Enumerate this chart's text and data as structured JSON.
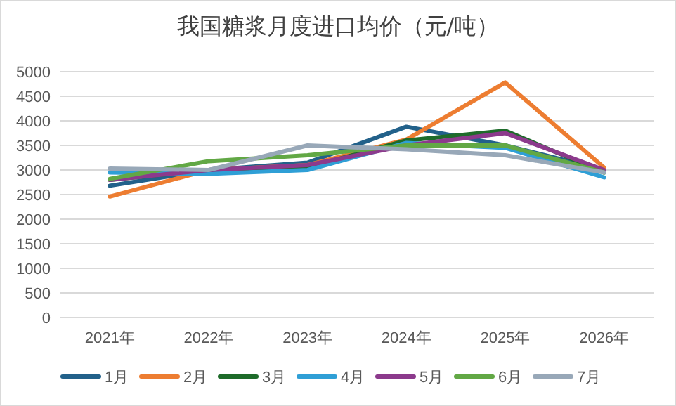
{
  "chart_data": {
    "type": "line",
    "title": "我国糖浆月度进口均价（元/吨）",
    "categories": [
      "2021年",
      "2022年",
      "2023年",
      "2024年",
      "2025年",
      "2026年"
    ],
    "series": [
      {
        "name": "1月",
        "color": "#22618a",
        "values": [
          2680,
          3000,
          3150,
          3880,
          3500,
          3000
        ]
      },
      {
        "name": "2月",
        "color": "#ed7d31",
        "values": [
          2460,
          3000,
          3100,
          3620,
          4780,
          3050
        ]
      },
      {
        "name": "3月",
        "color": "#1e6b2a",
        "values": [
          2800,
          3000,
          3050,
          3600,
          3800,
          2950
        ]
      },
      {
        "name": "4月",
        "color": "#2f9fd6",
        "values": [
          2950,
          2920,
          3000,
          3550,
          3450,
          2850
        ]
      },
      {
        "name": "5月",
        "color": "#8c3a8c",
        "values": [
          2800,
          3000,
          3100,
          3500,
          3750,
          3000
        ]
      },
      {
        "name": "6月",
        "color": "#62a845",
        "values": [
          2820,
          3180,
          3300,
          3500,
          3500,
          2950
        ]
      },
      {
        "name": "7月",
        "color": "#98a8b8",
        "values": [
          3030,
          3000,
          3500,
          3420,
          3300,
          2950
        ]
      }
    ],
    "ylim": [
      0,
      5000
    ],
    "yticks": [
      0,
      500,
      1000,
      1500,
      2000,
      2500,
      3000,
      3500,
      4000,
      4500,
      5000
    ],
    "grid": "y",
    "legend": "bottom"
  }
}
